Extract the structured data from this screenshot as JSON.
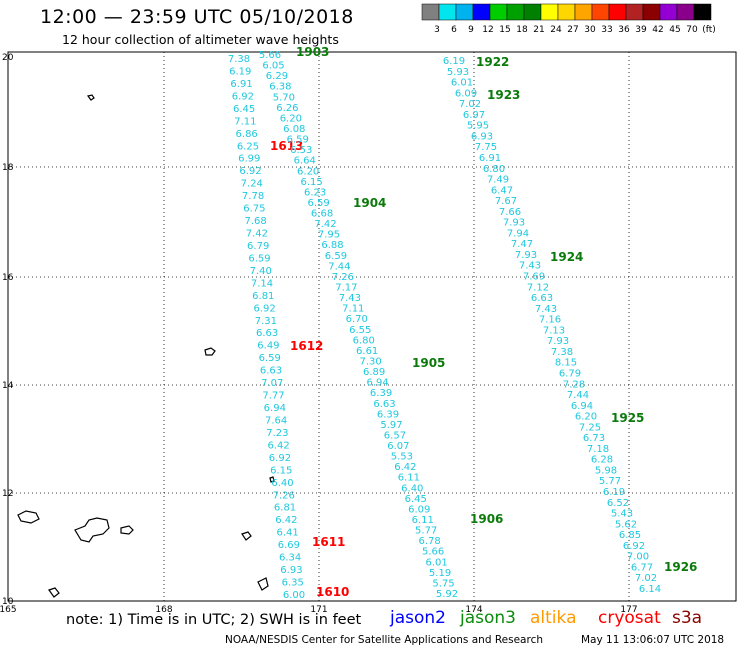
{
  "header": {
    "title": "12:00 — 23:59 UTC 05/10/2018",
    "subtitle": "12 hour collection of altimeter wave heights"
  },
  "colorbar": {
    "colors": [
      "#808080",
      "#00e5ee",
      "#00b2ee",
      "#0000ff",
      "#00cd00",
      "#00a000",
      "#008000",
      "#ffff00",
      "#ffd700",
      "#ffa500",
      "#ff4500",
      "#ff0000",
      "#b22222",
      "#8b0000",
      "#9400d3",
      "#8b008b",
      "#000000"
    ],
    "labels": [
      "3",
      "6",
      "9",
      "12",
      "15",
      "18",
      "21",
      "24",
      "27",
      "30",
      "33",
      "36",
      "39",
      "42",
      "45",
      "70",
      "(ft)"
    ]
  },
  "map": {
    "x_ticks": [
      "165",
      "168",
      "171",
      "174",
      "177"
    ],
    "y_ticks": [
      "20",
      "18",
      "16",
      "14",
      "12",
      "10"
    ],
    "tracks": [
      {
        "name": "track-left",
        "color": "#1fc8df",
        "sats": "cryosat",
        "values": [
          "7.38",
          "6.19",
          "6.91",
          "6.92",
          "6.45",
          "7.11",
          "6.86",
          "6.25",
          "6.99",
          "6.92",
          "7.24",
          "7.78",
          "6.75",
          "7.68",
          "7.42",
          "6.79",
          "6.59",
          "7.40",
          "7.14",
          "6.81",
          "6.92",
          "7.31",
          "6.63",
          "6.49",
          "6.59",
          "6.63",
          "7.07",
          "7.77",
          "6.94",
          "7.64",
          "7.23",
          "6.42",
          "6.92",
          "6.15",
          "6.40",
          "7.26",
          "6.81",
          "6.42",
          "6.41",
          "6.69",
          "6.34",
          "6.93",
          "6.35",
          "6.00"
        ],
        "times": [
          {
            "label": "1613",
            "color": "#ff0000"
          },
          {
            "label": "1612",
            "color": "#ff0000"
          },
          {
            "label": "1611",
            "color": "#ff0000"
          },
          {
            "label": "1610",
            "color": "#ff0000"
          }
        ]
      },
      {
        "name": "track-mid",
        "color": "#1fc8df",
        "values": [
          "5.66",
          "6.05",
          "6.29",
          "6.38",
          "5.70",
          "6.26",
          "6.20",
          "6.08",
          "6.59",
          "6.53",
          "6.64",
          "6.20",
          "6.15",
          "6.23",
          "6.59",
          "6.68",
          "7.42",
          "7.95",
          "6.88",
          "6.59",
          "7.44",
          "7.26",
          "7.17",
          "7.43",
          "7.11",
          "6.70",
          "6.55",
          "6.80",
          "6.61",
          "7.30",
          "6.89",
          "6.94",
          "6.39",
          "6.63",
          "6.39",
          "5.97",
          "6.57",
          "6.07",
          "5.53",
          "6.42",
          "6.11",
          "6.40",
          "6.45",
          "6.09",
          "6.11",
          "5.77",
          "6.78",
          "5.66",
          "6.01",
          "5.19",
          "5.75",
          "5.92"
        ],
        "times": [
          {
            "label": "1903",
            "color": "#0b7a0b"
          },
          {
            "label": "1904",
            "color": "#0b7a0b"
          },
          {
            "label": "1905",
            "color": "#0b7a0b"
          },
          {
            "label": "1906",
            "color": "#0b7a0b"
          }
        ]
      },
      {
        "name": "track-right",
        "color": "#1fc8df",
        "values": [
          "6.19",
          "5.93",
          "6.01",
          "6.09",
          "7.02",
          "6.97",
          "5.95",
          "6.93",
          "7.75",
          "6.91",
          "6.80",
          "7.49",
          "6.47",
          "7.67",
          "7.66",
          "7.93",
          "7.94",
          "7.47",
          "7.93",
          "7.43",
          "7.69",
          "7.12",
          "6.63",
          "7.43",
          "7.16",
          "7.13",
          "7.93",
          "7.38",
          "8.15",
          "6.79",
          "7.28",
          "7.44",
          "6.94",
          "6.20",
          "7.25",
          "6.73",
          "7.18",
          "6.28",
          "5.98",
          "5.77",
          "6.19",
          "6.52",
          "5.43",
          "5.62",
          "6.85",
          "6.92",
          "7.00",
          "6.77",
          "7.02",
          "6.14"
        ],
        "times": [
          {
            "label": "1922",
            "color": "#0b7a0b"
          },
          {
            "label": "1923",
            "color": "#0b7a0b"
          },
          {
            "label": "1924",
            "color": "#0b7a0b"
          },
          {
            "label": "1925",
            "color": "#0b7a0b"
          },
          {
            "label": "1926",
            "color": "#0b7a0b"
          }
        ]
      }
    ]
  },
  "footer": {
    "note": "note: 1) Time is in UTC; 2) SWH is in feet",
    "legend": {
      "jason2": "jason2",
      "jason3": "jason3",
      "altika": "altika",
      "cryosat": "cryosat",
      "s3a": "s3a"
    },
    "credit": "NOAA/NESDIS Center for Satellite Applications and Research",
    "timestamp": "May 11 13:06:07 UTC 2018"
  }
}
